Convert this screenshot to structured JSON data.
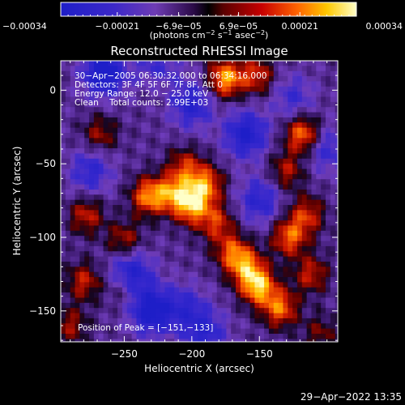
{
  "chart_data": {
    "type": "heatmap",
    "title": "Reconstructed RHESSI Image",
    "xlabel": "Heliocentric X (arcsec)",
    "ylabel": "Heliocentric Y (arcsec)",
    "xlim": [
      -297,
      -92
    ],
    "ylim": [
      -171,
      20
    ],
    "x_ticks": [
      -250,
      -200,
      -150
    ],
    "y_ticks": [
      0,
      -50,
      -100,
      -150
    ],
    "x_tick_labels": [
      "−250",
      "−200",
      "−150"
    ],
    "y_tick_labels": [
      "0",
      "−50",
      "−100",
      "−150"
    ],
    "colorbar": {
      "min": -0.00034,
      "max": 0.00034,
      "ticks": [
        -0.00034,
        -0.00021,
        -6.9e-05,
        6.9e-05,
        0.00021,
        0.00034
      ],
      "tick_labels": [
        "−0.00034",
        "−0.00021",
        "−6.9e−05",
        "6.9e−05",
        "0.00021",
        "0.00034"
      ],
      "label_parts": [
        "(photons cm",
        "−2",
        " s",
        "−1",
        " asec",
        "−2",
        ")"
      ]
    },
    "annotation_lines": [
      "30−Apr−2005 06:30:32.000 to 06:34:16.000",
      "Detectors: 3F 4F 5F 6F 7F 8F, Att 0",
      "Energy Range: 12.0 − 25.0 keV",
      "Clean    Total counts: 2.99E+03"
    ],
    "peak_label": "Position of Peak = [−151,−133]",
    "peak_position": [
      -151,
      -133
    ],
    "hotspots": [
      {
        "x": -175,
        "y": 8,
        "value": 0.95
      },
      {
        "x": -152,
        "y": 10,
        "value": 0.6
      },
      {
        "x": -118,
        "y": -30,
        "value": 0.85
      },
      {
        "x": -130,
        "y": -55,
        "value": 0.5
      },
      {
        "x": -268,
        "y": -30,
        "value": 0.45
      },
      {
        "x": -278,
        "y": -85,
        "value": 0.55
      },
      {
        "x": -250,
        "y": -102,
        "value": 0.5
      },
      {
        "x": -232,
        "y": -72,
        "value": 0.85
      },
      {
        "x": -214,
        "y": -70,
        "value": 0.75
      },
      {
        "x": -205,
        "y": -52,
        "value": 0.55
      },
      {
        "x": -200,
        "y": -78,
        "value": 0.95
      },
      {
        "x": -190,
        "y": -64,
        "value": 0.8
      },
      {
        "x": -182,
        "y": -90,
        "value": 0.6
      },
      {
        "x": -170,
        "y": -110,
        "value": 0.65
      },
      {
        "x": -160,
        "y": -120,
        "value": 0.7
      },
      {
        "x": -151,
        "y": -133,
        "value": 1.0
      },
      {
        "x": -135,
        "y": -148,
        "value": 0.8
      },
      {
        "x": -128,
        "y": -100,
        "value": 0.75
      },
      {
        "x": -115,
        "y": -85,
        "value": 0.6
      },
      {
        "x": -112,
        "y": -125,
        "value": 0.55
      },
      {
        "x": -280,
        "y": -130,
        "value": 0.55
      },
      {
        "x": -290,
        "y": -160,
        "value": 0.45
      },
      {
        "x": -250,
        "y": -135,
        "value": 0.35
      },
      {
        "x": -105,
        "y": -165,
        "value": 0.35
      },
      {
        "x": -225,
        "y": 5,
        "value": 0.3
      }
    ],
    "coldspots": [
      {
        "x": -265,
        "y": 12,
        "value": -0.9
      },
      {
        "x": -225,
        "y": 12,
        "value": -0.55
      },
      {
        "x": -200,
        "y": -10,
        "value": -0.6
      },
      {
        "x": -160,
        "y": -30,
        "value": -0.75
      },
      {
        "x": -150,
        "y": -75,
        "value": -0.55
      },
      {
        "x": -275,
        "y": -55,
        "value": -0.5
      },
      {
        "x": -245,
        "y": -125,
        "value": -0.75
      },
      {
        "x": -230,
        "y": -150,
        "value": -0.85
      },
      {
        "x": -205,
        "y": -148,
        "value": -0.45
      },
      {
        "x": -190,
        "y": -165,
        "value": -0.55
      },
      {
        "x": -125,
        "y": -5,
        "value": -0.4
      },
      {
        "x": -100,
        "y": -40,
        "value": -0.45
      }
    ]
  },
  "footer": {
    "timestamp": "29−Apr−2022 13:35"
  }
}
